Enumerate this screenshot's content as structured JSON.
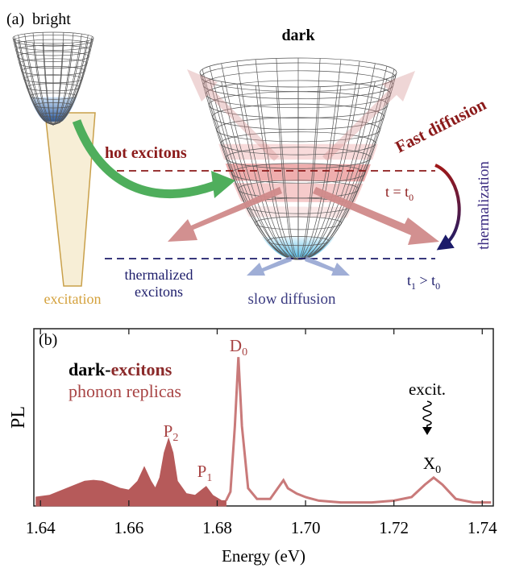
{
  "diagram": {
    "a_label": "(a)",
    "bright": "bright",
    "dark": "dark",
    "hot_excitons": "hot excitons",
    "fast_diffusion": "Fast diffusion",
    "t0_lhs": "t = t",
    "t0_sub": "0",
    "thermalization": "thermalization",
    "thermalized": [
      "thermalized",
      "excitons"
    ],
    "slow_diffusion": "slow diffusion",
    "excitation": "excitation",
    "t1": "t",
    "t1_sub": "1",
    "t1_gt": " > t",
    "t1_sub2": "0"
  },
  "chart_data": {
    "type": "line",
    "panel_label": "(b)",
    "legend_text": [
      "dark-",
      "excitons",
      "phonon replicas"
    ],
    "peak_labels": [
      {
        "text": "D",
        "sub": "0"
      },
      {
        "text": "P",
        "sub": "2"
      },
      {
        "text": "P",
        "sub": "1"
      },
      {
        "text": "X",
        "sub": "0"
      }
    ],
    "excitation_label": "excit.",
    "xlabel": "Energy (eV)",
    "ylabel": "PL",
    "x": [
      1.639,
      1.642,
      1.645,
      1.648,
      1.65,
      1.652,
      1.654,
      1.656,
      1.658,
      1.66,
      1.662,
      1.6635,
      1.665,
      1.666,
      1.667,
      1.668,
      1.669,
      1.67,
      1.671,
      1.673,
      1.675,
      1.6765,
      1.6775,
      1.679,
      1.681,
      1.682,
      1.683,
      1.684,
      1.6848,
      1.6856,
      1.687,
      1.689,
      1.692,
      1.694,
      1.695,
      1.696,
      1.698,
      1.7,
      1.703,
      1.708,
      1.715,
      1.72,
      1.724,
      1.727,
      1.729,
      1.731,
      1.734,
      1.738,
      1.742
    ],
    "series": [
      {
        "color": "#b65a5a",
        "fill": true,
        "values": [
          0.05,
          0.06,
          0.09,
          0.12,
          0.14,
          0.145,
          0.14,
          0.12,
          0.1,
          0.09,
          0.14,
          0.22,
          0.14,
          0.1,
          0.16,
          0.3,
          0.38,
          0.3,
          0.14,
          0.07,
          0.06,
          0.09,
          0.11,
          0.06,
          0.03,
          0.03,
          null,
          null,
          null,
          null,
          null,
          null,
          null,
          null,
          null,
          null,
          null,
          null,
          null,
          null,
          null,
          null,
          null,
          null,
          null,
          null,
          null,
          null,
          null
        ]
      },
      {
        "color": "#c97a7a",
        "fill": false,
        "values": [
          null,
          null,
          null,
          null,
          null,
          null,
          null,
          null,
          null,
          null,
          null,
          null,
          null,
          null,
          null,
          null,
          null,
          null,
          null,
          null,
          null,
          null,
          null,
          null,
          null,
          0.03,
          0.08,
          0.45,
          0.84,
          0.45,
          0.1,
          0.04,
          0.04,
          0.11,
          0.145,
          0.1,
          0.07,
          0.05,
          0.03,
          0.02,
          0.02,
          0.03,
          0.05,
          0.12,
          0.16,
          0.12,
          0.04,
          0.02,
          0.02
        ]
      }
    ],
    "xlim": [
      1.6385,
      1.7425
    ],
    "ylim": [
      0,
      1
    ],
    "xticks": [
      1.64,
      1.66,
      1.68,
      {
        "value": 1.7,
        "label": "1.70"
      },
      1.72,
      1.74
    ]
  }
}
